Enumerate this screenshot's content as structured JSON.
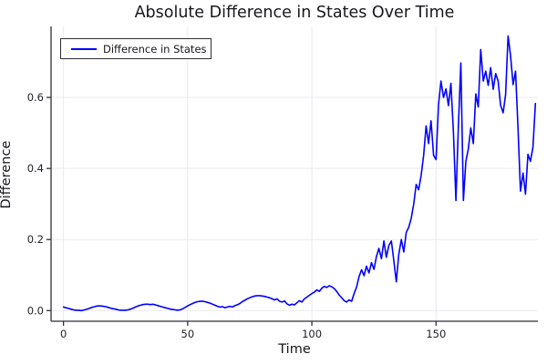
{
  "chart_data": {
    "type": "line",
    "title": "Absolute Difference in States Over Time",
    "xlabel": "Time",
    "ylabel": "Difference",
    "grid": true,
    "legend_position": "top-left",
    "xlim": [
      -5,
      191
    ],
    "ylim": [
      -0.03,
      0.8
    ],
    "xticks": [
      0,
      50,
      100,
      150
    ],
    "yticks": [
      0.0,
      0.2,
      0.4,
      0.6
    ],
    "xtick_labels": [
      "0",
      "50",
      "100",
      "150"
    ],
    "ytick_labels": [
      "0.0",
      "0.2",
      "0.4",
      "0.6"
    ],
    "series": [
      {
        "name": "Difference in States",
        "color": "#0000ff",
        "x_start": 0,
        "x_step": 1,
        "values": [
          0.01,
          0.008,
          0.006,
          0.004,
          0.002,
          0.001,
          0.001,
          0.0,
          0.001,
          0.003,
          0.005,
          0.008,
          0.01,
          0.012,
          0.013,
          0.013,
          0.012,
          0.011,
          0.009,
          0.007,
          0.005,
          0.004,
          0.002,
          0.001,
          0.001,
          0.001,
          0.002,
          0.004,
          0.007,
          0.01,
          0.013,
          0.015,
          0.017,
          0.018,
          0.018,
          0.017,
          0.018,
          0.016,
          0.014,
          0.012,
          0.01,
          0.008,
          0.006,
          0.004,
          0.003,
          0.002,
          0.001,
          0.002,
          0.005,
          0.009,
          0.013,
          0.017,
          0.02,
          0.023,
          0.025,
          0.026,
          0.026,
          0.025,
          0.023,
          0.021,
          0.018,
          0.015,
          0.012,
          0.01,
          0.011,
          0.008,
          0.01,
          0.012,
          0.01,
          0.014,
          0.016,
          0.02,
          0.025,
          0.029,
          0.033,
          0.036,
          0.039,
          0.041,
          0.042,
          0.042,
          0.041,
          0.04,
          0.038,
          0.036,
          0.033,
          0.03,
          0.033,
          0.026,
          0.024,
          0.027,
          0.019,
          0.015,
          0.018,
          0.016,
          0.022,
          0.028,
          0.024,
          0.033,
          0.038,
          0.043,
          0.048,
          0.052,
          0.058,
          0.054,
          0.063,
          0.068,
          0.065,
          0.07,
          0.067,
          0.062,
          0.054,
          0.044,
          0.036,
          0.028,
          0.024,
          0.03,
          0.026,
          0.048,
          0.066,
          0.095,
          0.115,
          0.098,
          0.125,
          0.106,
          0.135,
          0.116,
          0.152,
          0.175,
          0.146,
          0.196,
          0.15,
          0.183,
          0.196,
          0.14,
          0.081,
          0.158,
          0.2,
          0.165,
          0.22,
          0.234,
          0.26,
          0.3,
          0.355,
          0.34,
          0.38,
          0.437,
          0.52,
          0.47,
          0.534,
          0.437,
          0.425,
          0.58,
          0.646,
          0.6,
          0.624,
          0.577,
          0.64,
          0.5,
          0.31,
          0.52,
          0.697,
          0.31,
          0.42,
          0.455,
          0.514,
          0.47,
          0.61,
          0.573,
          0.735,
          0.646,
          0.674,
          0.634,
          0.684,
          0.623,
          0.667,
          0.646,
          0.578,
          0.557,
          0.608,
          0.773,
          0.718,
          0.636,
          0.674,
          0.514,
          0.336,
          0.387,
          0.328,
          0.44,
          0.42,
          0.46,
          0.583
        ]
      }
    ]
  },
  "legend": {
    "label": "Difference in States"
  },
  "style": {
    "line_color": "#0000ff",
    "grid_color": "#e9e9f0",
    "axis_color": "#2f2f38",
    "text_color": "#1f1f28",
    "background": "#ffffff"
  }
}
